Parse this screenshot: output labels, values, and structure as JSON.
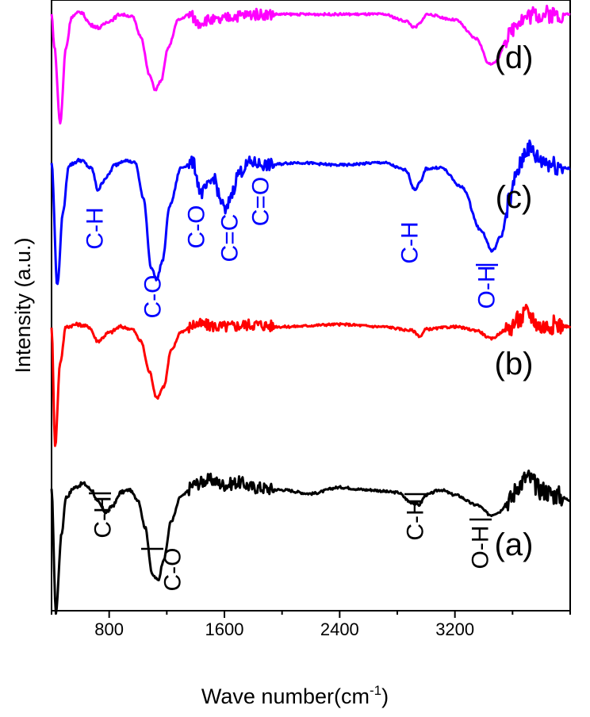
{
  "chart_data": {
    "type": "line",
    "xlabel": "Wave number(cm",
    "xlabel_sup": "-1",
    "xlabel_end": ")",
    "ylabel": "Intensity (a.u.)",
    "xlim": [
      400,
      4000
    ],
    "x_ticks": [
      800,
      1600,
      2400,
      3200
    ],
    "y_ticks_shown": false,
    "grid": false,
    "colors": {
      "a": "#000000",
      "b": "#ff0000",
      "c": "#0000ff",
      "d": "#ff00ff"
    },
    "series": [
      {
        "label": "(a)",
        "color": "#000000",
        "baseline": 0.08,
        "points": [
          [
            400,
            0.0
          ],
          [
            430,
            -0.98
          ],
          [
            470,
            -0.35
          ],
          [
            500,
            -0.06
          ],
          [
            560,
            0.02
          ],
          [
            620,
            0.05
          ],
          [
            680,
            0.0
          ],
          [
            720,
            -0.1
          ],
          [
            780,
            -0.18
          ],
          [
            830,
            -0.12
          ],
          [
            880,
            -0.02
          ],
          [
            940,
            0.0
          ],
          [
            1000,
            -0.08
          ],
          [
            1050,
            -0.3
          ],
          [
            1100,
            -0.68
          ],
          [
            1140,
            -0.72
          ],
          [
            1180,
            -0.55
          ],
          [
            1230,
            -0.25
          ],
          [
            1300,
            -0.05
          ],
          [
            1400,
            0.05
          ],
          [
            1500,
            0.08
          ],
          [
            1600,
            0.04
          ],
          [
            1700,
            0.06
          ],
          [
            1800,
            0.02
          ],
          [
            2000,
            0.0
          ],
          [
            2200,
            -0.03
          ],
          [
            2400,
            0.02
          ],
          [
            2600,
            0.0
          ],
          [
            2800,
            -0.02
          ],
          [
            2900,
            -0.1
          ],
          [
            2950,
            -0.12
          ],
          [
            3000,
            -0.04
          ],
          [
            3100,
            0.0
          ],
          [
            3200,
            -0.04
          ],
          [
            3350,
            -0.12
          ],
          [
            3450,
            -0.2
          ],
          [
            3500,
            -0.18
          ],
          [
            3580,
            -0.08
          ],
          [
            3650,
            0.05
          ],
          [
            3700,
            0.1
          ],
          [
            3800,
            0.0
          ],
          [
            3900,
            -0.04
          ],
          [
            4000,
            -0.08
          ]
        ]
      },
      {
        "label": "(b)",
        "color": "#ff0000",
        "baseline": 0.0,
        "points": [
          [
            400,
            0.0
          ],
          [
            425,
            -1.0
          ],
          [
            460,
            -0.3
          ],
          [
            500,
            0.0
          ],
          [
            580,
            0.02
          ],
          [
            660,
            0.0
          ],
          [
            720,
            -0.12
          ],
          [
            800,
            -0.05
          ],
          [
            880,
            0.0
          ],
          [
            960,
            -0.02
          ],
          [
            1020,
            -0.12
          ],
          [
            1080,
            -0.38
          ],
          [
            1130,
            -0.6
          ],
          [
            1180,
            -0.5
          ],
          [
            1230,
            -0.2
          ],
          [
            1300,
            -0.04
          ],
          [
            1400,
            0.02
          ],
          [
            1600,
            0.0
          ],
          [
            1800,
            0.02
          ],
          [
            2000,
            0.0
          ],
          [
            2400,
            0.02
          ],
          [
            2700,
            0.0
          ],
          [
            2900,
            -0.03
          ],
          [
            2960,
            -0.08
          ],
          [
            3000,
            -0.02
          ],
          [
            3200,
            0.0
          ],
          [
            3350,
            -0.03
          ],
          [
            3450,
            -0.1
          ],
          [
            3550,
            -0.03
          ],
          [
            3650,
            0.06
          ],
          [
            3700,
            0.12
          ],
          [
            3800,
            0.0
          ],
          [
            3900,
            0.02
          ],
          [
            4000,
            0.0
          ]
        ]
      },
      {
        "label": "(c)",
        "color": "#0000ff",
        "baseline": 0.0,
        "points": [
          [
            400,
            0.0
          ],
          [
            440,
            -1.0
          ],
          [
            480,
            -0.4
          ],
          [
            520,
            -0.02
          ],
          [
            600,
            0.02
          ],
          [
            680,
            -0.05
          ],
          [
            720,
            -0.22
          ],
          [
            780,
            -0.12
          ],
          [
            840,
            -0.02
          ],
          [
            900,
            0.02
          ],
          [
            980,
            0.0
          ],
          [
            1040,
            -0.3
          ],
          [
            1090,
            -0.85
          ],
          [
            1130,
            -0.95
          ],
          [
            1170,
            -0.8
          ],
          [
            1220,
            -0.35
          ],
          [
            1300,
            -0.04
          ],
          [
            1380,
            0.0
          ],
          [
            1440,
            -0.25
          ],
          [
            1480,
            -0.2
          ],
          [
            1530,
            -0.12
          ],
          [
            1570,
            -0.3
          ],
          [
            1610,
            -0.4
          ],
          [
            1650,
            -0.25
          ],
          [
            1700,
            -0.08
          ],
          [
            1780,
            0.0
          ],
          [
            1900,
            -0.02
          ],
          [
            2100,
            0.0
          ],
          [
            2400,
            -0.02
          ],
          [
            2700,
            0.0
          ],
          [
            2860,
            -0.06
          ],
          [
            2920,
            -0.22
          ],
          [
            2960,
            -0.16
          ],
          [
            3000,
            -0.05
          ],
          [
            3100,
            -0.04
          ],
          [
            3250,
            -0.2
          ],
          [
            3380,
            -0.55
          ],
          [
            3460,
            -0.72
          ],
          [
            3520,
            -0.6
          ],
          [
            3580,
            -0.3
          ],
          [
            3640,
            -0.05
          ],
          [
            3700,
            0.12
          ],
          [
            3800,
            0.02
          ],
          [
            3900,
            -0.02
          ],
          [
            4000,
            -0.05
          ]
        ]
      },
      {
        "label": "(d)",
        "color": "#ff00ff",
        "baseline": 0.0,
        "points": [
          [
            400,
            0.0
          ],
          [
            420,
            -0.3
          ],
          [
            460,
            -0.98
          ],
          [
            500,
            -0.3
          ],
          [
            540,
            -0.02
          ],
          [
            600,
            0.02
          ],
          [
            680,
            -0.1
          ],
          [
            730,
            -0.12
          ],
          [
            800,
            -0.06
          ],
          [
            880,
            0.0
          ],
          [
            960,
            -0.02
          ],
          [
            1020,
            -0.2
          ],
          [
            1080,
            -0.55
          ],
          [
            1120,
            -0.68
          ],
          [
            1160,
            -0.6
          ],
          [
            1210,
            -0.3
          ],
          [
            1280,
            -0.05
          ],
          [
            1360,
            0.0
          ],
          [
            1420,
            -0.08
          ],
          [
            1480,
            -0.05
          ],
          [
            1560,
            -0.06
          ],
          [
            1650,
            -0.02
          ],
          [
            1800,
            0.0
          ],
          [
            2100,
            0.0
          ],
          [
            2400,
            0.0
          ],
          [
            2700,
            0.0
          ],
          [
            2860,
            -0.06
          ],
          [
            2920,
            -0.12
          ],
          [
            2960,
            -0.08
          ],
          [
            3000,
            0.0
          ],
          [
            3200,
            -0.05
          ],
          [
            3350,
            -0.22
          ],
          [
            3440,
            -0.45
          ],
          [
            3490,
            -0.42
          ],
          [
            3560,
            -0.22
          ],
          [
            3640,
            -0.05
          ],
          [
            3750,
            0.0
          ],
          [
            3900,
            0.0
          ],
          [
            4000,
            0.0
          ]
        ]
      }
    ],
    "annotations": [
      {
        "series": "(a)",
        "text": "C-H",
        "x": 760,
        "color": "#000000"
      },
      {
        "series": "(a)",
        "text": "C-O",
        "x": 1220,
        "color": "#000000"
      },
      {
        "series": "(a)",
        "text": "C-H",
        "x": 2950,
        "color": "#000000"
      },
      {
        "series": "(a)",
        "text": "O-H",
        "x": 3450,
        "color": "#000000"
      },
      {
        "series": "(c)",
        "text": "C-H",
        "x": 720,
        "color": "#0000ff"
      },
      {
        "series": "(c)",
        "text": "C-O",
        "x": 1130,
        "color": "#0000ff"
      },
      {
        "series": "(c)",
        "text": "C-O",
        "x": 1440,
        "color": "#0000ff"
      },
      {
        "series": "(c)",
        "text": "C=C",
        "x": 1610,
        "color": "#0000ff"
      },
      {
        "series": "(c)",
        "text": "C=O",
        "x": 1720,
        "color": "#0000ff"
      },
      {
        "series": "(c)",
        "text": "C-H",
        "x": 2920,
        "color": "#0000ff"
      },
      {
        "series": "(c)",
        "text": "O-H",
        "x": 3460,
        "color": "#0000ff"
      }
    ]
  }
}
